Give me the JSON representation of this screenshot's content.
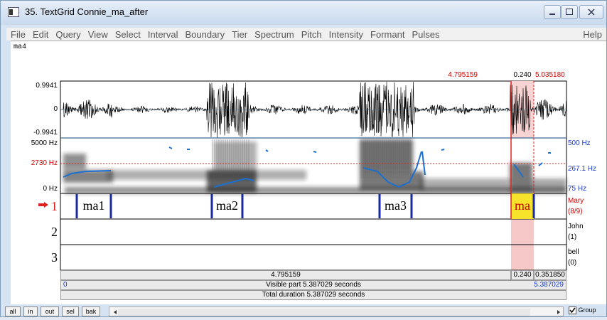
{
  "window": {
    "title": "35. TextGrid Connie_ma_after"
  },
  "menu": [
    "File",
    "Edit",
    "Query",
    "View",
    "Select",
    "Interval",
    "Boundary",
    "Tier",
    "Spectrum",
    "Pitch",
    "Intensity",
    "Formant",
    "Pulses"
  ],
  "help": "Help",
  "text_field": "ma4",
  "selection": {
    "start": "4.795159",
    "duration": "0.240",
    "end": "5.035180"
  },
  "waveform": {
    "max": "0.9941",
    "zero": "0",
    "min": "-0.9941"
  },
  "spectrogram": {
    "top": "5000 Hz",
    "cursor": "2730 Hz",
    "bottom": "0 Hz"
  },
  "pitch": {
    "top": "500 Hz",
    "cursor": "267.1 Hz",
    "bottom": "75 Hz"
  },
  "tiers": [
    {
      "number": "1",
      "name": "Mary",
      "count": "(8/9)",
      "intervals": [
        "ma1",
        "ma2",
        "ma3",
        "ma"
      ]
    },
    {
      "number": "2",
      "name": "John",
      "count": "(1)"
    },
    {
      "number": "3",
      "name": "bell",
      "count": "(0)"
    }
  ],
  "time_bars": {
    "before": "4.795159",
    "selection": "0.240",
    "after": "0.351850",
    "visible_start": "0",
    "visible": "Visible part 5.387029 seconds",
    "visible_end": "5.387029",
    "total": "Total duration 5.387029 seconds"
  },
  "buttons": [
    "all",
    "in",
    "out",
    "sel",
    "bak"
  ],
  "group": "Group"
}
